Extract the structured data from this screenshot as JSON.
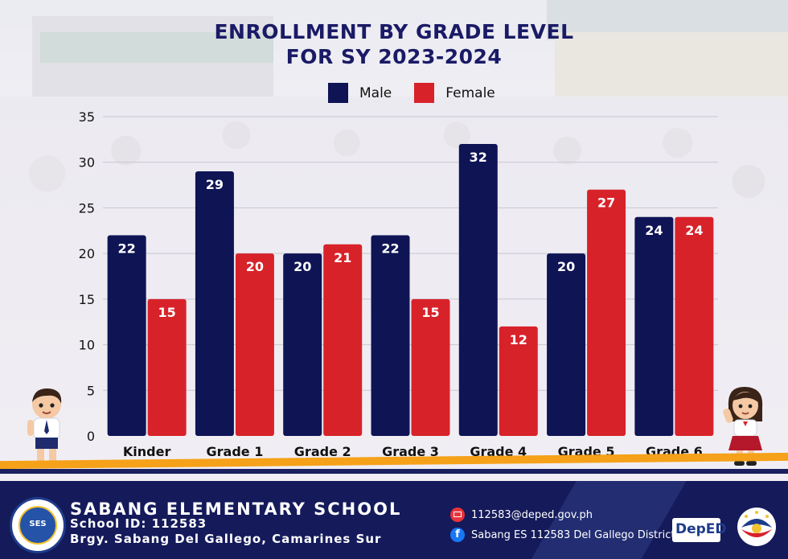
{
  "header": {
    "title_line1": "ENROLLMENT BY GRADE LEVEL",
    "title_line2": "FOR SY 2023-2024"
  },
  "legend": {
    "male_label": "Male",
    "female_label": "Female"
  },
  "colors": {
    "male": "#0e1454",
    "female": "#d8222a",
    "title": "#1a1a66",
    "footer": "#141a5a",
    "accent": "#f6a11a"
  },
  "chart_data": {
    "type": "bar",
    "title": "ENROLLMENT BY GRADE LEVEL FOR SY 2023-2024",
    "categories": [
      "Kinder",
      "Grade 1",
      "Grade 2",
      "Grade 3",
      "Grade 4",
      "Grade 5",
      "Grade 6"
    ],
    "series": [
      {
        "name": "Male",
        "values": [
          22,
          29,
          20,
          22,
          32,
          20,
          24
        ]
      },
      {
        "name": "Female",
        "values": [
          15,
          20,
          21,
          15,
          12,
          27,
          24
        ]
      }
    ],
    "ylim": [
      0,
      35
    ],
    "yticks": [
      0,
      5,
      10,
      15,
      20,
      25,
      30,
      35
    ],
    "xlabel": "",
    "ylabel": "",
    "grid": true,
    "legend_position": "top"
  },
  "footer": {
    "school_name": "SABANG ELEMENTARY SCHOOL",
    "school_id": "School ID: 112583",
    "address": "Brgy. Sabang Del Gallego, Camarines Sur",
    "email": "112583@deped.gov.ph",
    "facebook": "Sabang ES 112583 Del Gallego District",
    "seal_text": "SES",
    "deped_logo": "DepED"
  },
  "icons": {
    "email": "email-icon",
    "facebook": "facebook-icon"
  }
}
